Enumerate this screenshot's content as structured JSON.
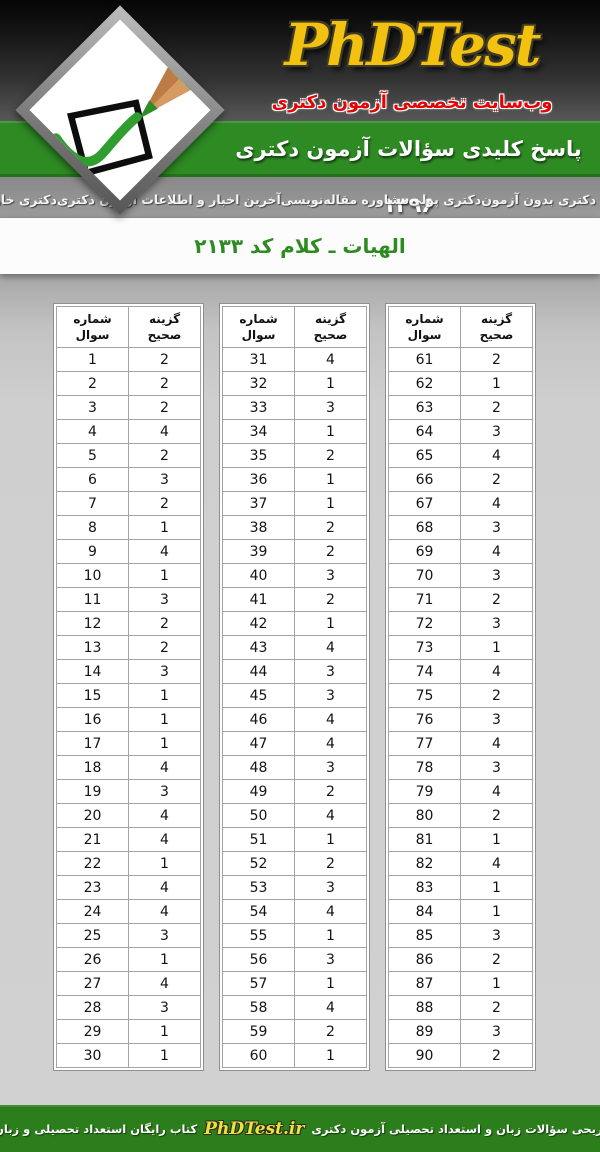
{
  "header": {
    "logo_text": "PhDTest",
    "tagline": "وب‌سایت تخصصی آزمون دکتری",
    "banner_title": "پاسخ کلیدی سؤالات آزمون دکتری ۱۳۹۶",
    "nav_links": [
      {
        "label": "دکتری بدون آزمون"
      },
      {
        "label": "دکتری پولی"
      },
      {
        "label": "مشاوره مقاله‌نویسی"
      },
      {
        "label": "آخرین اخبار و اطلاعات آزمون دکتری"
      },
      {
        "label": "دکتری خارج از کشور"
      }
    ]
  },
  "exam_title": "الهیات ـ کلام کد ۲۱۳۳",
  "answer_key": {
    "question_col_label": "شماره\nسوال",
    "answer_col_label": "گزینه\nصحیح",
    "tables": [
      {
        "rows": [
          [
            1,
            2
          ],
          [
            2,
            2
          ],
          [
            3,
            2
          ],
          [
            4,
            4
          ],
          [
            5,
            2
          ],
          [
            6,
            3
          ],
          [
            7,
            2
          ],
          [
            8,
            1
          ],
          [
            9,
            4
          ],
          [
            10,
            1
          ],
          [
            11,
            3
          ],
          [
            12,
            2
          ],
          [
            13,
            2
          ],
          [
            14,
            3
          ],
          [
            15,
            1
          ],
          [
            16,
            1
          ],
          [
            17,
            1
          ],
          [
            18,
            4
          ],
          [
            19,
            3
          ],
          [
            20,
            4
          ],
          [
            21,
            4
          ],
          [
            22,
            1
          ],
          [
            23,
            4
          ],
          [
            24,
            4
          ],
          [
            25,
            3
          ],
          [
            26,
            1
          ],
          [
            27,
            4
          ],
          [
            28,
            3
          ],
          [
            29,
            1
          ],
          [
            30,
            1
          ]
        ]
      },
      {
        "rows": [
          [
            31,
            4
          ],
          [
            32,
            1
          ],
          [
            33,
            3
          ],
          [
            34,
            1
          ],
          [
            35,
            2
          ],
          [
            36,
            1
          ],
          [
            37,
            1
          ],
          [
            38,
            2
          ],
          [
            39,
            2
          ],
          [
            40,
            3
          ],
          [
            41,
            2
          ],
          [
            42,
            1
          ],
          [
            43,
            4
          ],
          [
            44,
            3
          ],
          [
            45,
            3
          ],
          [
            46,
            4
          ],
          [
            47,
            4
          ],
          [
            48,
            3
          ],
          [
            49,
            2
          ],
          [
            50,
            4
          ],
          [
            51,
            1
          ],
          [
            52,
            2
          ],
          [
            53,
            3
          ],
          [
            54,
            4
          ],
          [
            55,
            1
          ],
          [
            56,
            3
          ],
          [
            57,
            1
          ],
          [
            58,
            4
          ],
          [
            59,
            2
          ],
          [
            60,
            1
          ]
        ]
      },
      {
        "rows": [
          [
            61,
            2
          ],
          [
            62,
            1
          ],
          [
            63,
            2
          ],
          [
            64,
            3
          ],
          [
            65,
            4
          ],
          [
            66,
            2
          ],
          [
            67,
            4
          ],
          [
            68,
            3
          ],
          [
            69,
            4
          ],
          [
            70,
            3
          ],
          [
            71,
            2
          ],
          [
            72,
            3
          ],
          [
            73,
            1
          ],
          [
            74,
            4
          ],
          [
            75,
            2
          ],
          [
            76,
            3
          ],
          [
            77,
            4
          ],
          [
            78,
            3
          ],
          [
            79,
            4
          ],
          [
            80,
            2
          ],
          [
            81,
            1
          ],
          [
            82,
            4
          ],
          [
            83,
            1
          ],
          [
            84,
            1
          ],
          [
            85,
            3
          ],
          [
            86,
            2
          ],
          [
            87,
            1
          ],
          [
            88,
            2
          ],
          [
            89,
            3
          ],
          [
            90,
            2
          ]
        ]
      }
    ]
  },
  "footer": {
    "right_text": "پاسخ تشریحی سؤالات زبان و استعداد تحصیلی آزمون دکتری",
    "site_name": "PhDTest.ir",
    "left_text": "کتاب رایگان استعداد تحصیلی و زبان عمومی"
  },
  "colors": {
    "banner_green": "#2e8b23",
    "footer_green": "#2c7d1c",
    "logo_yellow": "#f3c211",
    "tagline_red": "#e30505",
    "exam_title_green": "#2e8b22"
  }
}
